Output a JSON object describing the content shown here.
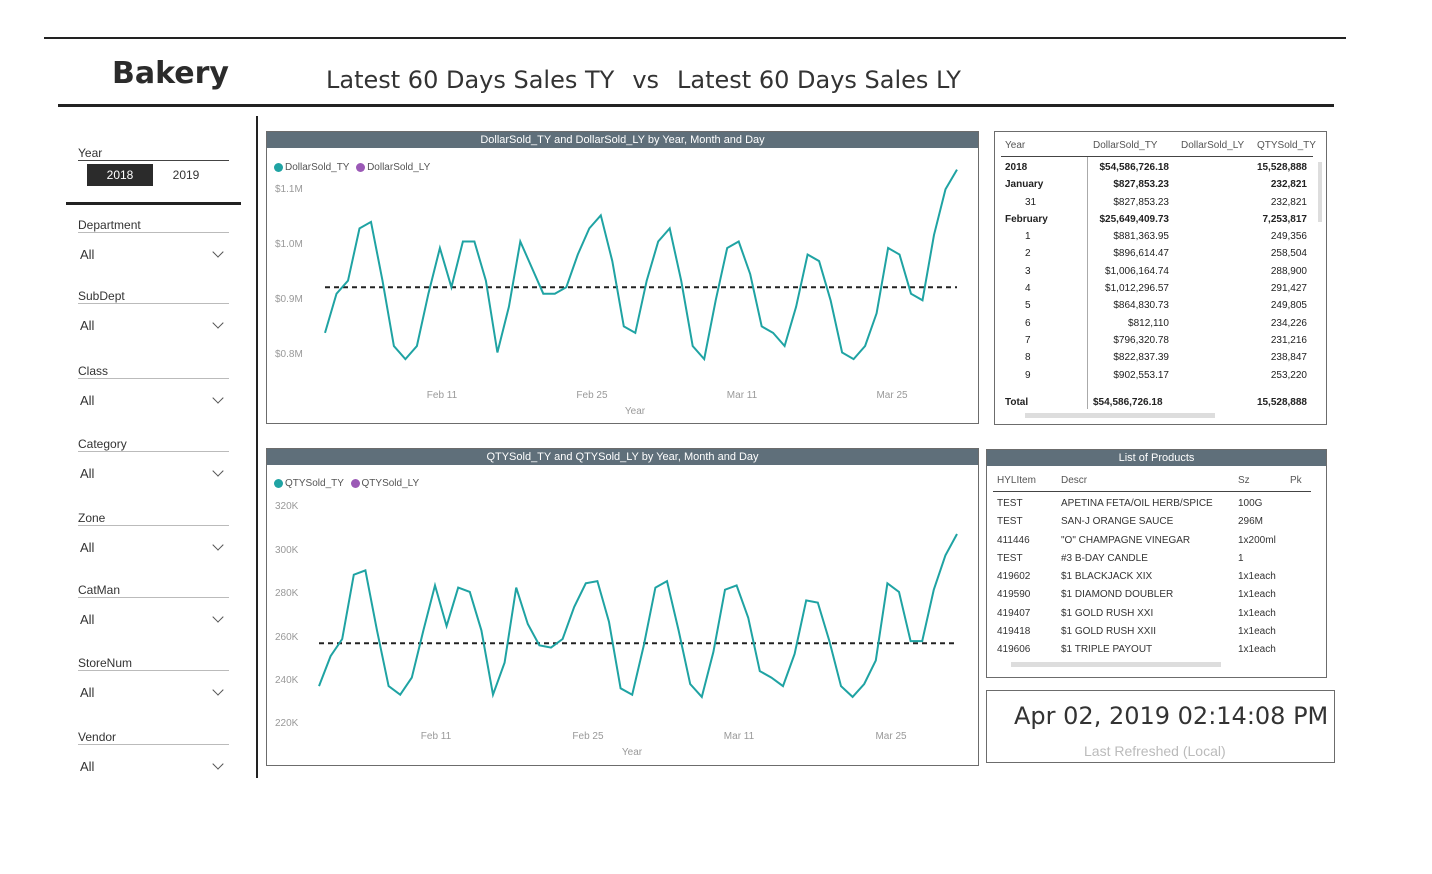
{
  "app_title": "Bakery",
  "page_title": {
    "left": "Latest 60 Days Sales TY",
    "vs": "vs",
    "right": "Latest 60 Days Sales LY"
  },
  "slicers": {
    "year": {
      "label": "Year",
      "options": [
        "2018",
        "2019"
      ],
      "selected": "2018"
    },
    "filters": [
      {
        "label": "Department",
        "value": "All"
      },
      {
        "label": "SubDept",
        "value": "All"
      },
      {
        "label": "Class",
        "value": "All"
      },
      {
        "label": "Category",
        "value": "All"
      },
      {
        "label": "Zone",
        "value": "All"
      },
      {
        "label": "CatMan",
        "value": "All"
      },
      {
        "label": "StoreNum",
        "value": "All"
      },
      {
        "label": "Vendor",
        "value": "All"
      }
    ]
  },
  "colors": {
    "ty": "#1fa3a3",
    "ly": "#9b59b6",
    "header": "#5f6f7a",
    "selected_year_bg": "#2b2b2b"
  },
  "chart_data": [
    {
      "type": "line",
      "title": "DollarSold_TY and DollarSold_LY by Year, Month and Day",
      "xlabel": "Year",
      "ylabel": "",
      "x_ticks": [
        "Feb 11",
        "Feb 25",
        "Mar 11",
        "Mar 25"
      ],
      "y_ticks": [
        "$1.1M",
        "$1.0M",
        "$0.9M",
        "$0.8M"
      ],
      "ylim": [
        0.745,
        1.12
      ],
      "trend_value": 0.91,
      "series": [
        {
          "name": "DollarSold_TY",
          "values": [
            0.84,
            0.9,
            0.92,
            1.0,
            1.01,
            0.92,
            0.82,
            0.8,
            0.82,
            0.9,
            0.97,
            0.91,
            0.98,
            0.98,
            0.92,
            0.81,
            0.88,
            0.98,
            0.94,
            0.9,
            0.9,
            0.91,
            0.96,
            1.0,
            1.02,
            0.95,
            0.85,
            0.84,
            0.92,
            0.98,
            1.0,
            0.92,
            0.82,
            0.8,
            0.89,
            0.97,
            0.98,
            0.93,
            0.85,
            0.84,
            0.82,
            0.88,
            0.96,
            0.95,
            0.89,
            0.81,
            0.8,
            0.82,
            0.87,
            0.97,
            0.96,
            0.9,
            0.89,
            0.99,
            1.06,
            1.09
          ]
        },
        {
          "name": "DollarSold_LY",
          "values": []
        }
      ]
    },
    {
      "type": "line",
      "title": "QTYSold_TY and QTYSold_LY by Year, Month and Day",
      "xlabel": "Year",
      "ylabel": "",
      "x_ticks": [
        "Feb 11",
        "Feb 25",
        "Mar 11",
        "Mar 25"
      ],
      "y_ticks": [
        "320K",
        "300K",
        "280K",
        "260K",
        "240K",
        "220K"
      ],
      "ylim": [
        216000,
        328000
      ],
      "trend_value": 256000,
      "series": [
        {
          "name": "QTYSold_TY",
          "values": [
            236000,
            250000,
            258000,
            288000,
            290000,
            262000,
            236000,
            232000,
            240000,
            262000,
            283000,
            264000,
            282000,
            280000,
            262000,
            232000,
            247000,
            282000,
            265000,
            255000,
            254000,
            258000,
            273000,
            284000,
            285000,
            266000,
            235000,
            232000,
            255000,
            282000,
            285000,
            262000,
            237000,
            231000,
            252000,
            281000,
            283000,
            268000,
            243000,
            240000,
            236000,
            251000,
            276000,
            275000,
            257000,
            236000,
            231000,
            237000,
            248000,
            284000,
            280000,
            257000,
            257000,
            281000,
            297000,
            307000
          ]
        },
        {
          "name": "QTYSold_LY",
          "values": []
        }
      ]
    }
  ],
  "matrix": {
    "headers": [
      "Year",
      "DollarSold_TY",
      "DollarSold_LY",
      "QTYSold_TY"
    ],
    "rows": [
      {
        "label": "2018",
        "ty": "$54,586,726.18",
        "ly": "",
        "qty": "15,528,888",
        "bold": true
      },
      {
        "label": "January",
        "ty": "$827,853.23",
        "ly": "",
        "qty": "232,821",
        "bold": true
      },
      {
        "label": "31",
        "ty": "",
        "ly": "$827,853.23",
        "qty": "232,821",
        "bold": false
      },
      {
        "label": "February",
        "ty": "$25,649,409.73",
        "ly": "",
        "qty": "7,253,817",
        "bold": true
      },
      {
        "label": "1",
        "ty": "$881,363.95",
        "ly": "",
        "qty": "249,356",
        "bold": false
      },
      {
        "label": "2",
        "ty": "$896,614.47",
        "ly": "",
        "qty": "258,504",
        "bold": false
      },
      {
        "label": "3",
        "ty": "$1,006,164.74",
        "ly": "",
        "qty": "288,900",
        "bold": false
      },
      {
        "label": "4",
        "ty": "$1,012,296.57",
        "ly": "",
        "qty": "291,427",
        "bold": false
      },
      {
        "label": "5",
        "ty": "$864,830.73",
        "ly": "",
        "qty": "249,805",
        "bold": false
      },
      {
        "label": "6",
        "ty": "$812,110",
        "ly": "",
        "qty": "234,226",
        "bold": false
      },
      {
        "label": "7",
        "ty": "$796,320.78",
        "ly": "",
        "qty": "231,216",
        "bold": false
      },
      {
        "label": "8",
        "ty": "$822,837.39",
        "ly": "",
        "qty": "238,847",
        "bold": false
      },
      {
        "label": "9",
        "ty": "$902,553.17",
        "ly": "",
        "qty": "253,220",
        "bold": false
      }
    ],
    "total": {
      "label": "Total",
      "ty": "$54,586,726.18",
      "ly": "",
      "qty": "15,528,888"
    }
  },
  "products": {
    "title": "List of Products",
    "headers": [
      "HYLItem",
      "Descr",
      "Sz",
      "Pk"
    ],
    "rows": [
      [
        "TEST",
        "APETINA FETA/OIL HERB/SPICE",
        "100G",
        ""
      ],
      [
        "TEST",
        "SAN-J ORANGE SAUCE",
        "296M",
        ""
      ],
      [
        "411446",
        "\"O\" CHAMPAGNE VINEGAR",
        "1x200ml",
        ""
      ],
      [
        "TEST",
        "#3 B-DAY CANDLE",
        "1",
        ""
      ],
      [
        "419602",
        "$1 BLACKJACK XIX",
        "1x1each",
        ""
      ],
      [
        "419590",
        "$1 DIAMOND DOUBLER",
        "1x1each",
        ""
      ],
      [
        "419407",
        "$1 GOLD RUSH XXI",
        "1x1each",
        ""
      ],
      [
        "419418",
        "$1 GOLD RUSH XXII",
        "1x1each",
        ""
      ],
      [
        "419606",
        "$1 TRIPLE PAYOUT",
        "1x1each",
        ""
      ]
    ]
  },
  "refresh": {
    "timestamp": "Apr 02, 2019 02:14:08 PM",
    "label": "Last Refreshed (Local)"
  }
}
